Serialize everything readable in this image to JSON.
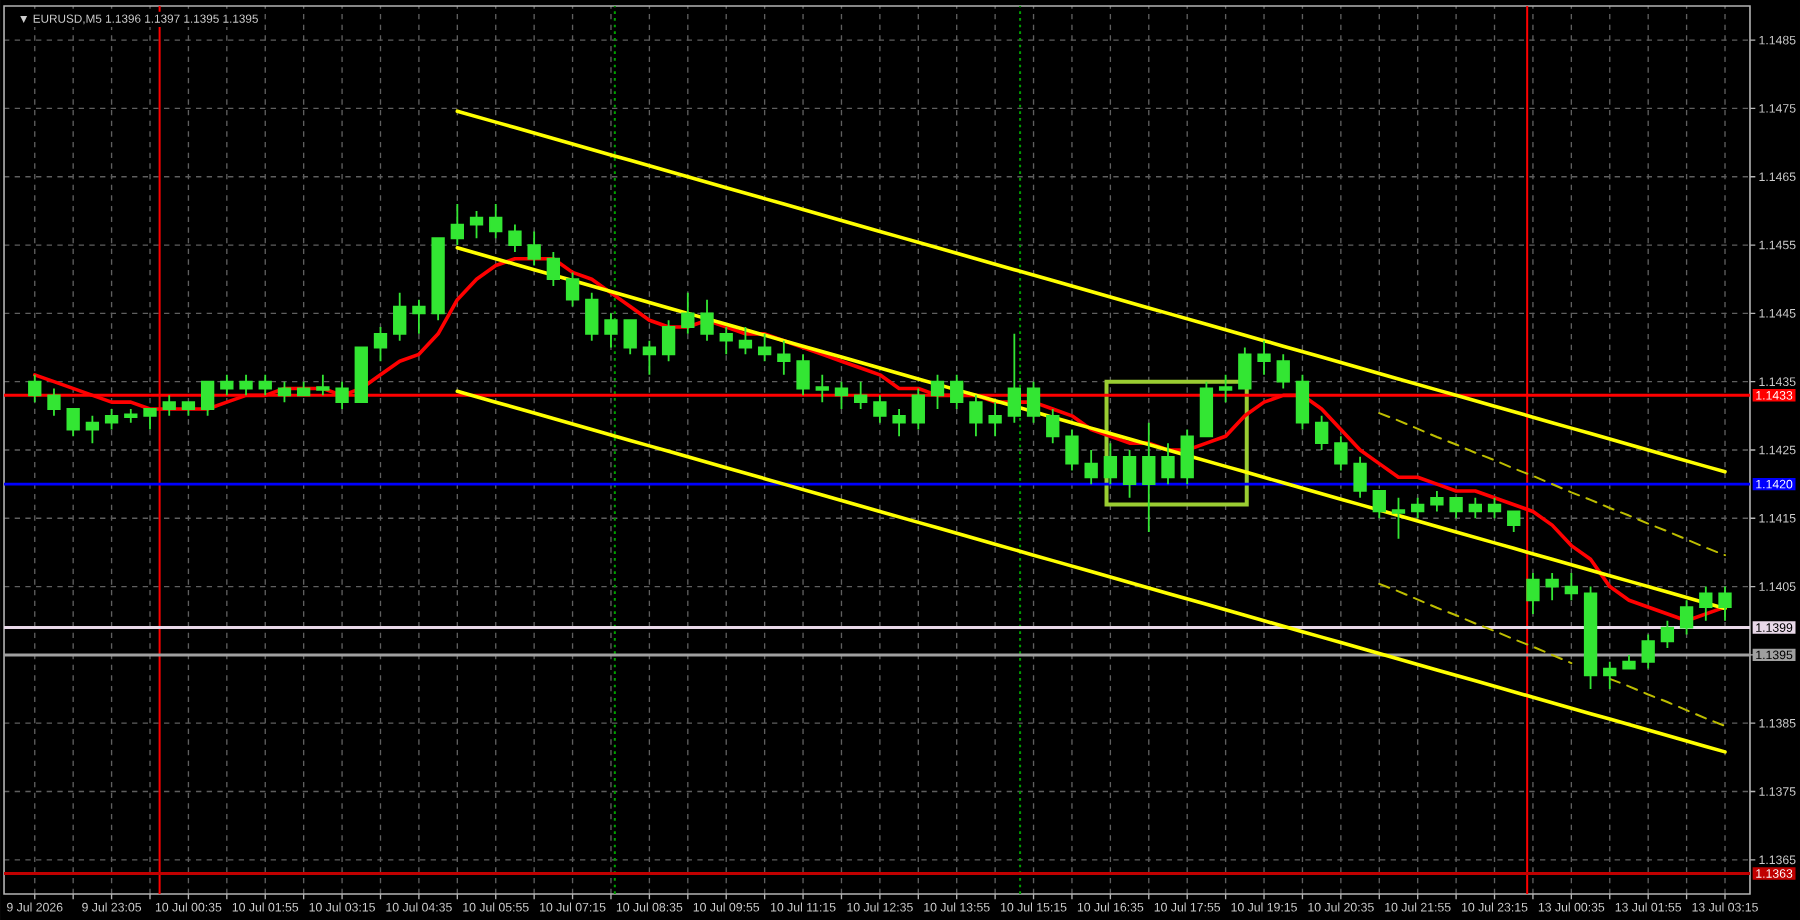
{
  "chart_data": {
    "type": "candlestick",
    "title": "▼ EURUSD,M5 1.1396 1.1397 1.1395 1.1395",
    "categories": [
      "9 Jul 2026",
      null,
      null,
      null,
      "9 Jul 23:05",
      null,
      null,
      null,
      "10 Jul 00:35",
      null,
      null,
      null,
      "10 Jul 01:55",
      null,
      null,
      null,
      "10 Jul 03:15",
      null,
      null,
      null,
      "10 Jul 04:35",
      null,
      null,
      null,
      "10 Jul 05:55",
      null,
      null,
      null,
      "10 Jul 07:15",
      null,
      null,
      null,
      "10 Jul 08:35",
      null,
      null,
      null,
      "10 Jul 09:55",
      null,
      null,
      null,
      "10 Jul 11:15",
      null,
      null,
      null,
      "10 Jul 12:35",
      null,
      null,
      null,
      "10 Jul 13:55",
      null,
      null,
      null,
      "10 Jul 15:15",
      null,
      null,
      null,
      "10 Jul 16:35",
      null,
      null,
      null,
      "10 Jul 17:55",
      null,
      null,
      null,
      "10 Jul 19:15",
      null,
      null,
      null,
      "10 Jul 20:35",
      null,
      null,
      null,
      "10 Jul 21:55",
      null,
      null,
      null,
      "10 Jul 23:15",
      null,
      null,
      null,
      "13 Jul 00:35",
      null,
      null,
      null,
      "13 Jul 01:55",
      null,
      null,
      null,
      "13 Jul 03:15"
    ],
    "ohlc": [
      [
        1.1435,
        1.1436,
        1.1432,
        1.1433
      ],
      [
        1.1433,
        1.1434,
        1.143,
        1.1431
      ],
      [
        1.1431,
        1.1431,
        1.1427,
        1.1428
      ],
      [
        1.1428,
        1.143,
        1.1426,
        1.1429
      ],
      [
        1.1429,
        1.1431,
        1.1428,
        1.143
      ],
      [
        1.143,
        1.1431,
        1.1429,
        1.143
      ],
      [
        1.143,
        1.1431,
        1.1428,
        1.1431
      ],
      [
        1.1431,
        1.1433,
        1.143,
        1.1432
      ],
      [
        1.1432,
        1.1432,
        1.143,
        1.1431
      ],
      [
        1.1431,
        1.1435,
        1.143,
        1.1435
      ],
      [
        1.1435,
        1.1436,
        1.1433,
        1.1434
      ],
      [
        1.1434,
        1.1436,
        1.1433,
        1.1435
      ],
      [
        1.1435,
        1.1436,
        1.1433,
        1.1434
      ],
      [
        1.1434,
        1.1435,
        1.1432,
        1.1433
      ],
      [
        1.1433,
        1.1435,
        1.1433,
        1.1434
      ],
      [
        1.1434,
        1.1436,
        1.1433,
        1.1434
      ],
      [
        1.1434,
        1.1435,
        1.1431,
        1.1432
      ],
      [
        1.1432,
        1.144,
        1.1432,
        1.144
      ],
      [
        1.144,
        1.1443,
        1.1438,
        1.1442
      ],
      [
        1.1442,
        1.1448,
        1.1441,
        1.1446
      ],
      [
        1.1446,
        1.1447,
        1.1442,
        1.1445
      ],
      [
        1.1445,
        1.1456,
        1.1444,
        1.1456
      ],
      [
        1.1456,
        1.1461,
        1.1455,
        1.1458
      ],
      [
        1.1458,
        1.146,
        1.1456,
        1.1459
      ],
      [
        1.1459,
        1.1461,
        1.1456,
        1.1457
      ],
      [
        1.1457,
        1.1458,
        1.1454,
        1.1455
      ],
      [
        1.1455,
        1.1457,
        1.1452,
        1.1453
      ],
      [
        1.1453,
        1.1454,
        1.1449,
        1.145
      ],
      [
        1.145,
        1.1451,
        1.1446,
        1.1447
      ],
      [
        1.1447,
        1.1448,
        1.1441,
        1.1442
      ],
      [
        1.1442,
        1.1445,
        1.144,
        1.1444
      ],
      [
        1.1444,
        1.1444,
        1.1439,
        1.144
      ],
      [
        1.144,
        1.1441,
        1.1436,
        1.1439
      ],
      [
        1.1439,
        1.1444,
        1.1438,
        1.1443
      ],
      [
        1.1443,
        1.1448,
        1.1442,
        1.1445
      ],
      [
        1.1445,
        1.1447,
        1.1441,
        1.1442
      ],
      [
        1.1442,
        1.1443,
        1.1439,
        1.1441
      ],
      [
        1.1441,
        1.1443,
        1.1439,
        1.144
      ],
      [
        1.144,
        1.1442,
        1.1438,
        1.1439
      ],
      [
        1.1439,
        1.1441,
        1.1436,
        1.1438
      ],
      [
        1.1438,
        1.1439,
        1.1433,
        1.1434
      ],
      [
        1.1434,
        1.1436,
        1.1432,
        1.1434
      ],
      [
        1.1434,
        1.1435,
        1.1431,
        1.1433
      ],
      [
        1.1433,
        1.1435,
        1.1431,
        1.1432
      ],
      [
        1.1432,
        1.1433,
        1.1429,
        1.143
      ],
      [
        1.143,
        1.1431,
        1.1427,
        1.1429
      ],
      [
        1.1429,
        1.1434,
        1.1428,
        1.1433
      ],
      [
        1.1433,
        1.1436,
        1.1431,
        1.1435
      ],
      [
        1.1435,
        1.1436,
        1.1431,
        1.1432
      ],
      [
        1.1432,
        1.1433,
        1.1427,
        1.1429
      ],
      [
        1.1429,
        1.1432,
        1.1427,
        1.143
      ],
      [
        1.143,
        1.1442,
        1.1429,
        1.1434
      ],
      [
        1.1434,
        1.1435,
        1.1429,
        1.143
      ],
      [
        1.143,
        1.1431,
        1.1426,
        1.1427
      ],
      [
        1.1427,
        1.1428,
        1.1422,
        1.1423
      ],
      [
        1.1423,
        1.1425,
        1.142,
        1.1421
      ],
      [
        1.1421,
        1.1426,
        1.142,
        1.1424
      ],
      [
        1.1424,
        1.1425,
        1.1418,
        1.142
      ],
      [
        1.142,
        1.1429,
        1.1413,
        1.1424
      ],
      [
        1.1424,
        1.1426,
        1.142,
        1.1421
      ],
      [
        1.1421,
        1.1428,
        1.142,
        1.1427
      ],
      [
        1.1427,
        1.1435,
        1.1427,
        1.1434
      ],
      [
        1.1434,
        1.1436,
        1.1432,
        1.1434
      ],
      [
        1.1434,
        1.144,
        1.1434,
        1.1439
      ],
      [
        1.1439,
        1.1441,
        1.1436,
        1.1438
      ],
      [
        1.1438,
        1.1439,
        1.1434,
        1.1435
      ],
      [
        1.1435,
        1.1436,
        1.1428,
        1.1429
      ],
      [
        1.1429,
        1.143,
        1.1425,
        1.1426
      ],
      [
        1.1426,
        1.1427,
        1.1422,
        1.1423
      ],
      [
        1.1423,
        1.1424,
        1.1418,
        1.1419
      ],
      [
        1.1419,
        1.1419,
        1.1415,
        1.1416
      ],
      [
        1.1416,
        1.1418,
        1.1412,
        1.1416
      ],
      [
        1.1416,
        1.1418,
        1.1415,
        1.1417
      ],
      [
        1.1417,
        1.1419,
        1.1416,
        1.1418
      ],
      [
        1.1418,
        1.1418,
        1.1415,
        1.1416
      ],
      [
        1.1416,
        1.1418,
        1.1415,
        1.1417
      ],
      [
        1.1417,
        1.1418,
        1.1415,
        1.1416
      ],
      [
        1.1416,
        1.1416,
        1.1413,
        1.1414
      ],
      [
        1.1403,
        1.1407,
        1.1401,
        1.1406
      ],
      [
        1.1406,
        1.1407,
        1.1403,
        1.1405
      ],
      [
        1.1405,
        1.1407,
        1.1403,
        1.1404
      ],
      [
        1.1404,
        1.1405,
        1.139,
        1.1392
      ],
      [
        1.1392,
        1.1394,
        1.139,
        1.1393
      ],
      [
        1.1393,
        1.1395,
        1.1393,
        1.1394
      ],
      [
        1.1394,
        1.1398,
        1.1393,
        1.1397
      ],
      [
        1.1397,
        1.14,
        1.1396,
        1.1399
      ],
      [
        1.1399,
        1.1403,
        1.1398,
        1.1402
      ],
      [
        1.1402,
        1.1405,
        1.14,
        1.1404
      ],
      [
        1.1404,
        1.1405,
        1.14,
        1.1402
      ]
    ],
    "color": "#33e633",
    "series": [
      {
        "type": "line",
        "color": "#ff0000",
        "values": [
          1.1436,
          1.1435,
          1.1434,
          1.1433,
          1.1432,
          1.1432,
          1.1431,
          1.1431,
          1.1431,
          1.1431,
          1.1432,
          1.1433,
          1.1433,
          1.1434,
          1.1434,
          1.1434,
          1.1433,
          1.1434,
          1.1436,
          1.1438,
          1.1439,
          1.1442,
          1.1447,
          1.145,
          1.1452,
          1.1453,
          1.1453,
          1.1453,
          1.1451,
          1.145,
          1.1448,
          1.1446,
          1.1444,
          1.1443,
          1.1443,
          1.1444,
          1.1443,
          1.1442,
          1.1442,
          1.1441,
          1.144,
          1.1439,
          1.1438,
          1.1437,
          1.1436,
          1.1434,
          1.1434,
          1.1433,
          1.1433,
          1.1433,
          1.1432,
          1.1432,
          1.1432,
          1.1431,
          1.143,
          1.1428,
          1.1427,
          1.1426,
          1.1426,
          1.1425,
          1.1425,
          1.1426,
          1.1427,
          1.143,
          1.1432,
          1.1433,
          1.1433,
          1.1431,
          1.1428,
          1.1425,
          1.1423,
          1.1421,
          1.1421,
          1.142,
          1.1419,
          1.1419,
          1.1418,
          1.1417,
          1.1416,
          1.1414,
          1.1411,
          1.1409,
          1.1405,
          1.1403,
          1.1402,
          1.1401,
          1.14,
          1.1401,
          1.1402
        ]
      },
      {
        "type": "line",
        "color": "#ffff00",
        "values": [
          null,
          null,
          null,
          null,
          null,
          null,
          null,
          null,
          null,
          null,
          null,
          null,
          null,
          null,
          null,
          null,
          null,
          null,
          null,
          null,
          null,
          null,
          1.14746,
          1.14738,
          1.1473,
          1.14722,
          1.14714,
          1.14706,
          1.14698,
          1.1469,
          1.14682,
          1.14674,
          1.14666,
          1.14658,
          1.1465,
          1.14642,
          1.14634,
          1.14626,
          1.14618,
          1.1461,
          1.14602,
          1.14594,
          1.14586,
          1.14578,
          1.1457,
          1.14562,
          1.14554,
          1.14546,
          1.14538,
          1.1453,
          1.14522,
          1.14514,
          1.14506,
          1.14498,
          1.1449,
          1.14482,
          1.14474,
          1.14466,
          1.14458,
          1.1445,
          1.14442,
          1.14434,
          1.14426,
          1.14418,
          1.1441,
          1.14402,
          1.14394,
          1.14386,
          1.14378,
          1.1437,
          1.14362,
          1.14354,
          1.14346,
          1.14338,
          1.1433,
          1.14322,
          1.14314,
          1.14306,
          1.14298,
          1.1429,
          1.14282,
          1.14274,
          1.14266,
          1.14258,
          1.1425,
          1.14242,
          1.14234,
          1.14226,
          1.14218
        ]
      },
      {
        "type": "line",
        "color": "#ffff00",
        "values": [
          null,
          null,
          null,
          null,
          null,
          null,
          null,
          null,
          null,
          null,
          null,
          null,
          null,
          null,
          null,
          null,
          null,
          null,
          null,
          null,
          null,
          null,
          1.14546,
          1.14538,
          1.1453,
          1.14522,
          1.14514,
          1.14506,
          1.14498,
          1.1449,
          1.14482,
          1.14474,
          1.14466,
          1.14458,
          1.1445,
          1.14442,
          1.14434,
          1.14426,
          1.14418,
          1.1441,
          1.14402,
          1.14394,
          1.14386,
          1.14378,
          1.1437,
          1.14362,
          1.14354,
          1.14346,
          1.14338,
          1.1433,
          1.14322,
          1.14314,
          1.14306,
          1.14298,
          1.1429,
          1.14282,
          1.14274,
          1.14266,
          1.14258,
          1.1425,
          1.14242,
          1.14234,
          1.14226,
          1.14218,
          1.1421,
          1.14202,
          1.14194,
          1.14186,
          1.14178,
          1.1417,
          1.14162,
          1.14154,
          1.14146,
          1.14138,
          1.1413,
          1.14122,
          1.14114,
          1.14106,
          1.14098,
          1.1409,
          1.14082,
          1.14074,
          1.14066,
          1.14058,
          1.1405,
          1.14042,
          1.14034,
          1.14026,
          1.14018
        ]
      },
      {
        "type": "line",
        "color": "#ffff00",
        "values": [
          null,
          null,
          null,
          null,
          null,
          null,
          null,
          null,
          null,
          null,
          null,
          null,
          null,
          null,
          null,
          null,
          null,
          null,
          null,
          null,
          null,
          null,
          1.14336,
          1.14328,
          1.1432,
          1.14312,
          1.14304,
          1.14296,
          1.14288,
          1.1428,
          1.14272,
          1.14264,
          1.14256,
          1.14248,
          1.1424,
          1.14232,
          1.14224,
          1.14216,
          1.14208,
          1.142,
          1.14192,
          1.14184,
          1.14176,
          1.14168,
          1.1416,
          1.14152,
          1.14144,
          1.14136,
          1.14128,
          1.1412,
          1.14112,
          1.14104,
          1.14096,
          1.14088,
          1.1408,
          1.14072,
          1.14064,
          1.14056,
          1.14048,
          1.1404,
          1.14032,
          1.14024,
          1.14016,
          1.14008,
          1.14,
          1.13992,
          1.13984,
          1.13976,
          1.13968,
          1.1396,
          1.13952,
          1.13944,
          1.13936,
          1.13928,
          1.1392,
          1.13912,
          1.13904,
          1.13896,
          1.13888,
          1.1388,
          1.13872,
          1.13864,
          1.13856,
          1.13848,
          1.1384,
          1.13832,
          1.13824,
          1.13816,
          1.13808
        ]
      },
      {
        "type": "line",
        "color": "#bdbd00",
        "line_style": "dashed",
        "values": [
          null,
          null,
          null,
          null,
          null,
          null,
          null,
          null,
          null,
          null,
          null,
          null,
          null,
          null,
          null,
          null,
          null,
          null,
          null,
          null,
          null,
          null,
          null,
          null,
          null,
          null,
          null,
          null,
          null,
          null,
          null,
          null,
          null,
          null,
          null,
          null,
          null,
          null,
          null,
          null,
          null,
          null,
          null,
          null,
          null,
          null,
          null,
          null,
          null,
          null,
          null,
          null,
          null,
          null,
          null,
          null,
          null,
          null,
          null,
          null,
          null,
          null,
          null,
          null,
          null,
          null,
          null,
          null,
          null,
          null,
          1.14304,
          1.14293,
          1.14281,
          1.14269,
          1.14258,
          1.14246,
          1.14235,
          1.14223,
          1.14212,
          1.142,
          1.14188,
          1.14177,
          1.14165,
          1.14154,
          1.14142,
          1.14131,
          1.14119,
          1.14107,
          1.14096
        ]
      },
      {
        "type": "line",
        "color": "#bdbd00",
        "line_style": "dashed",
        "values": [
          null,
          null,
          null,
          null,
          null,
          null,
          null,
          null,
          null,
          null,
          null,
          null,
          null,
          null,
          null,
          null,
          null,
          null,
          null,
          null,
          null,
          null,
          null,
          null,
          null,
          null,
          null,
          null,
          null,
          null,
          null,
          null,
          null,
          null,
          null,
          null,
          null,
          null,
          null,
          null,
          null,
          null,
          null,
          null,
          null,
          null,
          null,
          null,
          null,
          null,
          null,
          null,
          null,
          null,
          null,
          null,
          null,
          null,
          null,
          null,
          null,
          null,
          null,
          null,
          null,
          null,
          null,
          null,
          null,
          null,
          1.14054,
          1.14043,
          1.14031,
          1.14019,
          1.14008,
          1.13996,
          1.13985,
          1.13973,
          1.13962,
          1.1395,
          1.13938,
          null,
          1.13915,
          1.13904,
          1.13892,
          1.13881,
          1.13869,
          1.13857,
          1.13846
        ]
      }
    ],
    "ylim": [
      1.136,
      1.149
    ],
    "yticks": [
      1.1365,
      1.1375,
      1.1385,
      {
        "value": 1.1395,
        "label": null
      },
      1.1405,
      1.1415,
      1.1425,
      1.1435,
      1.1445,
      1.1455,
      1.1465,
      1.1475,
      1.1485
    ],
    "grid": true,
    "ref_lines": [
      {
        "axis": "y",
        "value": 1.1433,
        "label": "1.1433",
        "color": "#ff0000"
      },
      {
        "axis": "y",
        "value": 1.142,
        "label": "1.1420",
        "color": "#0000ff"
      },
      {
        "axis": "y",
        "value": 1.1399,
        "label": "1.1399",
        "color": "#e8d8e8"
      },
      {
        "axis": "y",
        "value": 1.1395,
        "label": "1.1395",
        "color": "#a0a0a0"
      },
      {
        "axis": "y",
        "value": 1.1363,
        "label": "1.1363",
        "color": "#c00000"
      }
    ]
  }
}
